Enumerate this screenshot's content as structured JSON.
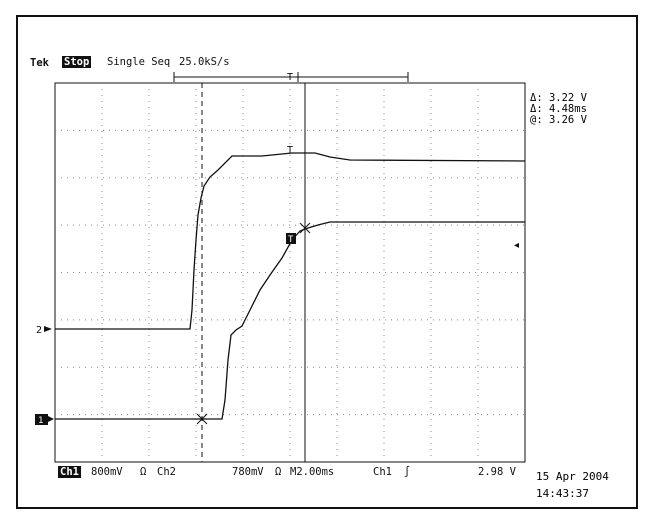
{
  "header": {
    "brand": "Tek",
    "run_state": "Stop",
    "acq_mode": "Single Seq",
    "sample_rate": "25.0kS/s"
  },
  "cursors": {
    "delta_v": "Δ: 3.22 V",
    "delta_t": "Δ: 4.48ms",
    "at_v": "@: 3.26 V"
  },
  "markers": {
    "ch2_label": "2",
    "ch1_label": "1",
    "trigger_label": "T",
    "cursor_t": "T"
  },
  "bottom_bar": {
    "ch1": "Ch1",
    "ch1_scale": "800mV",
    "ch1_coupling": "Ω",
    "ch2": "Ch2",
    "ch2_scale": "780mV",
    "ch2_coupling": "Ω",
    "timebase": "M2.00ms",
    "trig_source": "Ch1",
    "trig_slope": "∫",
    "trig_level": "2.98 V"
  },
  "timestamp": {
    "date": "15 Apr 2004",
    "time": "14:43:37"
  },
  "colors": {
    "trace": "#111111",
    "grid": "#8a8a8a",
    "background": "#ffffff"
  }
}
